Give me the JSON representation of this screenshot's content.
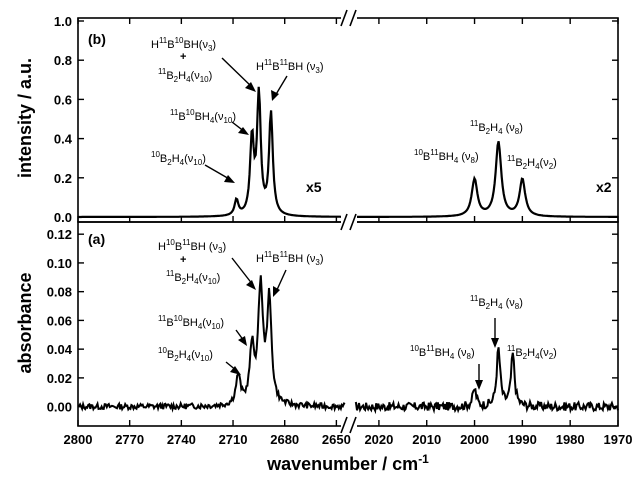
{
  "chart_data": [
    {
      "panel": "(b)",
      "type": "line",
      "ylabel": "intensity / a.u.",
      "ylim": [
        0.0,
        1.0
      ],
      "yticks": [
        "0.0",
        "0.2",
        "0.4",
        "0.6",
        "0.8",
        "1.0"
      ],
      "xlim_left": [
        2800,
        2645
      ],
      "xlim_right": [
        2025,
        1970
      ],
      "scale_left": "x5",
      "scale_right": "x2",
      "peaks_left": [
        {
          "x": 2708,
          "y": 0.08
        },
        {
          "x": 2699,
          "y": 0.39
        },
        {
          "x": 2695,
          "y": 0.61
        },
        {
          "x": 2688,
          "y": 0.52
        }
      ],
      "peaks_right": [
        {
          "x": 2000,
          "y": 0.19
        },
        {
          "x": 1995,
          "y": 0.38
        },
        {
          "x": 1990,
          "y": 0.19
        }
      ],
      "annotations": [
        {
          "text": [
            "H",
            "11",
            "B",
            "10",
            "BH(",
            "ν",
            "3",
            ")"
          ],
          "x": 2695
        },
        {
          "text": [
            "H",
            "11",
            "B",
            "11",
            "BH (",
            "ν",
            "3",
            ")"
          ],
          "x": 2688
        },
        {
          "text": [
            "11",
            "B",
            "10",
            "BH",
            "4",
            "(",
            "ν",
            "10",
            ")"
          ],
          "x": 2699
        },
        {
          "text": [
            "10",
            "B",
            "2",
            "H",
            "4",
            "(",
            "ν",
            "10",
            ")"
          ],
          "x": 2708
        },
        {
          "text": [
            "11",
            "B",
            "2",
            "H",
            "4",
            " (",
            "ν",
            "8",
            ")"
          ],
          "x": 1995
        },
        {
          "text": [
            "10",
            "B",
            "11",
            "BH",
            "4",
            " (",
            "ν",
            "8",
            ")"
          ],
          "x": 2000
        },
        {
          "text": [
            "11",
            "B",
            "2",
            "H",
            "4",
            "(",
            "ν",
            "2",
            ")"
          ],
          "x": 1990
        }
      ]
    },
    {
      "panel": "(a)",
      "type": "line",
      "ylabel": "absorbance",
      "xlabel": "wavenumber / cm",
      "xlabel_sup": "-1",
      "ylim": [
        -0.01,
        0.125
      ],
      "yticks": [
        "0.00",
        "0.02",
        "0.04",
        "0.06",
        "0.08",
        "0.10",
        "0.12"
      ],
      "xticks_left": [
        "2800",
        "2770",
        "2740",
        "2710",
        "2680",
        "2650"
      ],
      "xticks_right": [
        "2020",
        "2010",
        "2000",
        "1990",
        "1980",
        "1970"
      ],
      "peaks_left": [
        {
          "x": 2707,
          "y": 0.02
        },
        {
          "x": 2699,
          "y": 0.038
        },
        {
          "x": 2694,
          "y": 0.081
        },
        {
          "x": 2689,
          "y": 0.072
        }
      ],
      "peaks_right": [
        {
          "x": 2000,
          "y": 0.012
        },
        {
          "x": 1995,
          "y": 0.04
        },
        {
          "x": 1992,
          "y": 0.036
        }
      ]
    }
  ]
}
